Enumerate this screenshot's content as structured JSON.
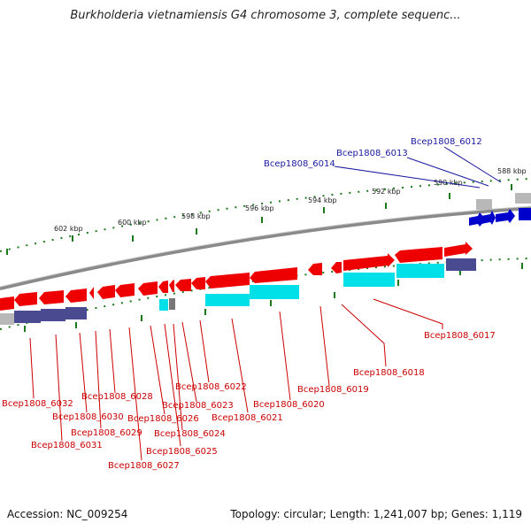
{
  "title": "Burkholderia vietnamiensis G4 chromosome 3, complete sequenc...",
  "accession": "Accession: NC_009254",
  "topology": "Topology: circular; Length: 1,241,007 bp; Genes: 1,119",
  "colors": {
    "forward_gene": "#ee0000",
    "reverse_gene": "#00e0e8",
    "reverse_band": "#4a4a90",
    "blue_gene": "#0000cc",
    "tick": "#1a7a1a",
    "backbone": "#888888"
  },
  "scale_labels": [
    "588 kbp",
    "590 kbp",
    "592 kbp",
    "594 kbp",
    "596 kbp",
    "598 kbp",
    "600 kbp",
    "602 kbp"
  ],
  "gene_labels_red": [
    "Bcep1808_6032",
    "Bcep1808_6031",
    "Bcep1808_6030",
    "Bcep1808_6029",
    "Bcep1808_6028",
    "Bcep1808_6027",
    "Bcep1808_6026",
    "Bcep1808_6025",
    "Bcep1808_6024",
    "Bcep1808_6023",
    "Bcep1808_6022",
    "Bcep1808_6021",
    "Bcep1808_6020",
    "Bcep1808_6019",
    "Bcep1808_6018",
    "Bcep1808_6017"
  ],
  "gene_labels_blue": [
    "Bcep1808_6014",
    "Bcep1808_6013",
    "Bcep1808_6012"
  ]
}
